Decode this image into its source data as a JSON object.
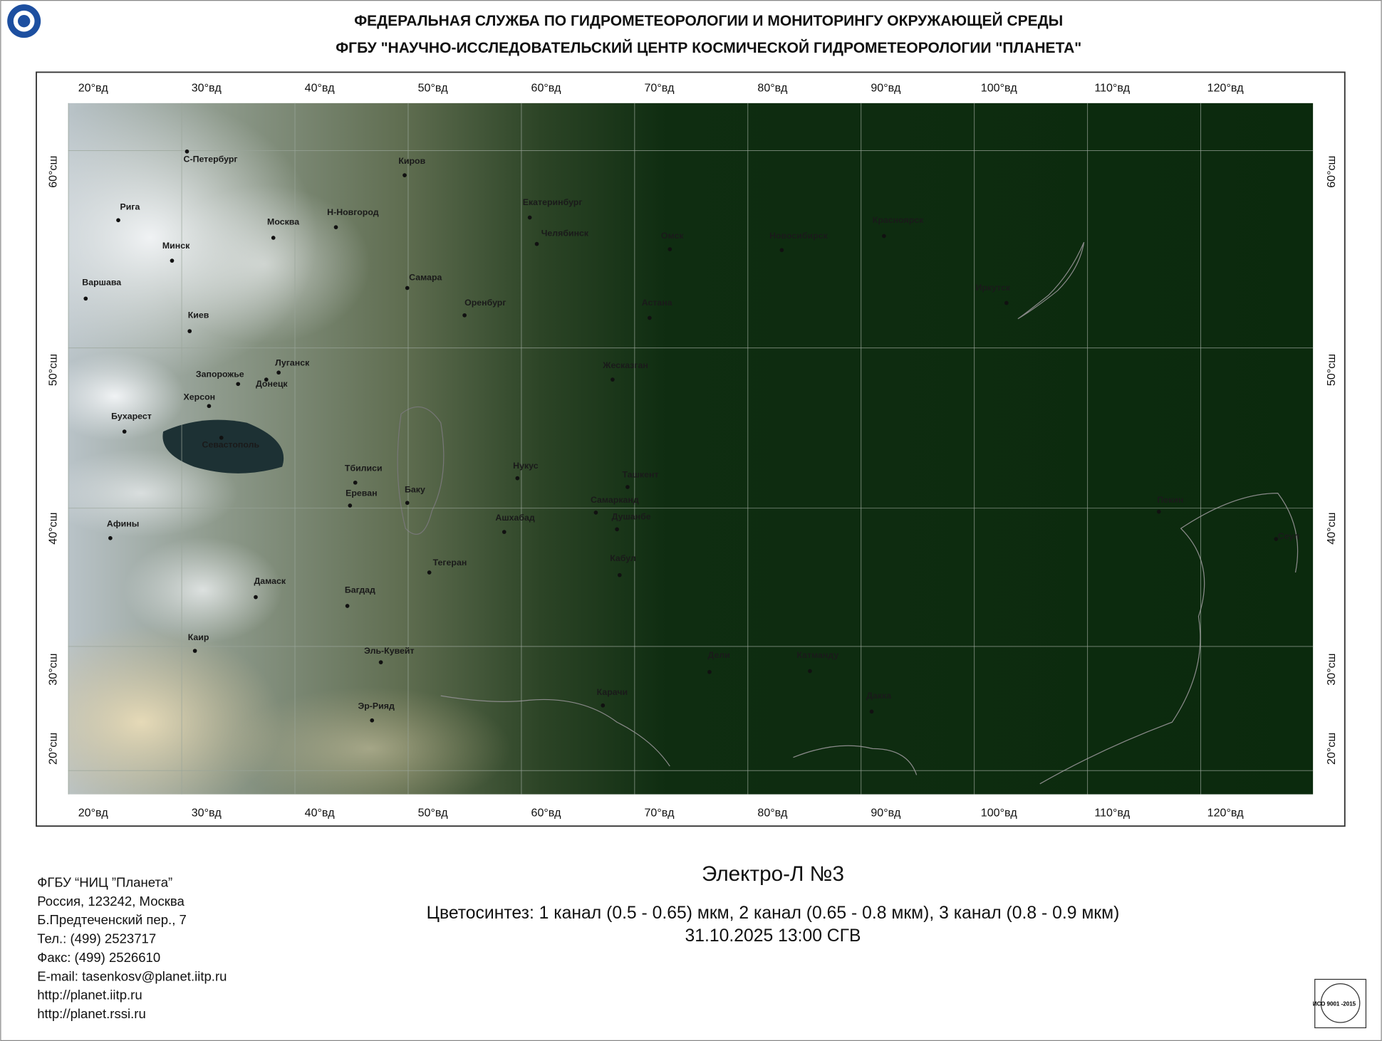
{
  "header": {
    "line1": "ФЕДЕРАЛЬНАЯ СЛУЖБА ПО ГИДРОМЕТЕОРОЛОГИИ И МОНИТОРИНГУ ОКРУЖАЮЩЕЙ СРЕДЫ",
    "line2": "ФГБУ \"НАУЧНО-ИССЛЕДОВАТЕЛЬСКИЙ ЦЕНТР КОСМИЧЕСКОЙ ГИДРОМЕТЕОРОЛОГИИ \"ПЛАНЕТА\""
  },
  "map": {
    "lon_labels": [
      "20°вд",
      "30°вд",
      "40°вд",
      "50°вд",
      "60°вд",
      "70°вд",
      "80°вд",
      "90°вд",
      "100°вд",
      "110°вд",
      "120°вд"
    ],
    "lat_labels": [
      "60°сш",
      "50°сш",
      "40°сш",
      "30°сш",
      "20°сш"
    ],
    "cities": [
      "С-Петербург",
      "Киров",
      "Рига",
      "Москва",
      "Н-Новгород",
      "Екатеринбург",
      "Челябинск",
      "Омск",
      "Новосибирск",
      "Красноярск",
      "Минск",
      "Варшава",
      "Самара",
      "Оренбург",
      "Астана",
      "Иркутск",
      "Киев",
      "Луганск",
      "Запорожье",
      "Донецк",
      "Жесказган",
      "Херсон",
      "Бухарест",
      "Севастополь",
      "Тбилиси",
      "Нукус",
      "Ташкент",
      "Баку",
      "Ереван",
      "Самарканд",
      "Пекин",
      "Ашхабад",
      "Душанбе",
      "Афины",
      "Сеул",
      "Кабул",
      "Тегеран",
      "Дамаск",
      "Багдад",
      "Каир",
      "Эль-Кувейт",
      "Дели",
      "Катманду",
      "Карачи",
      "Дакка",
      "Эр-Рияд"
    ]
  },
  "footer": {
    "contacts": [
      "ФГБУ “НИЦ ”Планета”",
      "Россия, 123242, Москва",
      "Б.Предтеченский пер., 7",
      "Тел.: (499) 2523717",
      "Факс: (499) 2526610",
      "E-mail: tasenkosv@planet.iitp.ru",
      "http://planet.iitp.ru",
      "http://planet.rssi.ru"
    ],
    "satellite": "Электро-Л №3",
    "synthesis": "Цветосинтез: 1 канал (0.5 - 0.65) мкм, 2 канал (0.65 - 0.8 мкм), 3 канал (0.8 - 0.9 мкм)",
    "datetime": "31.10.2025  13:00 СГВ",
    "iso": "ИСО 9001 -2015"
  }
}
